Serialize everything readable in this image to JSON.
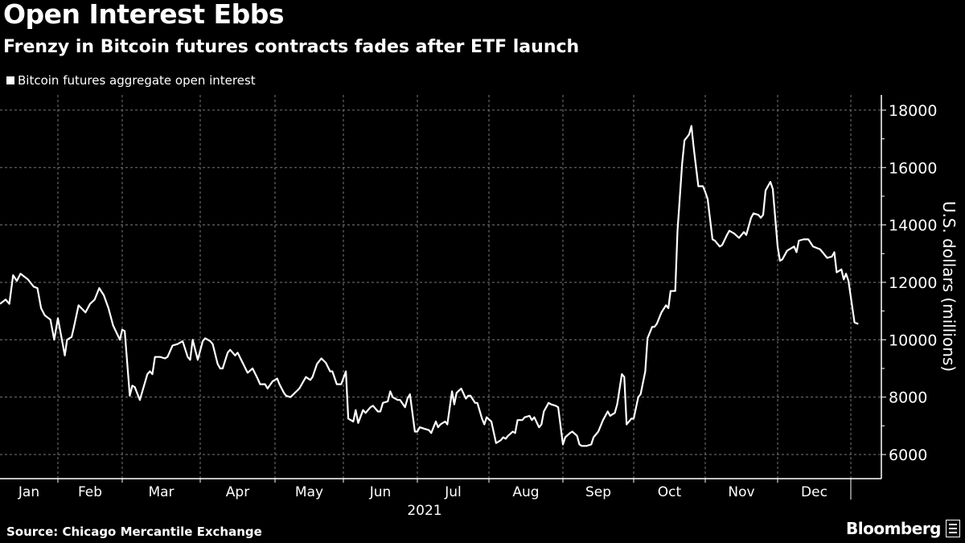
{
  "header": {
    "title": "Open Interest Ebbs",
    "subtitle": "Frenzy in Bitcoin futures contracts fades after ETF launch"
  },
  "footer": {
    "source": "Source: Chicago Mercantile Exchange",
    "brand": "Bloomberg"
  },
  "colors": {
    "background": "#000000",
    "line": "#ffffff",
    "grid": "#777777",
    "text": "#ffffff"
  },
  "chart_data": {
    "type": "line",
    "title": "Open Interest Ebbs",
    "subtitle": "Frenzy in Bitcoin futures contracts fades after ETF launch",
    "xlabel": "2021",
    "ylabel": "U.S. dollars (millions)",
    "ylim": [
      5160,
      18530
    ],
    "y_ticks": [
      6000,
      8000,
      10000,
      12000,
      14000,
      16000,
      18000
    ],
    "x_tick_labels": [
      "Jan",
      "Feb",
      "Mar",
      "Apr",
      "May",
      "Jun",
      "Jul",
      "Aug",
      "Sep",
      "Oct",
      "Nov",
      "Dec"
    ],
    "y_axis_position": "right",
    "grid": true,
    "legend_placement": "top-left",
    "series": [
      {
        "name": "Bitcoin futures aggregate open interest",
        "x": [
          "2021-01-01",
          "2021-01-04",
          "2021-01-06",
          "2021-01-08",
          "2021-01-10",
          "2021-01-12",
          "2021-01-16",
          "2021-01-19",
          "2021-01-21",
          "2021-01-23",
          "2021-01-25",
          "2021-01-28",
          "2021-01-30",
          "2021-02-01",
          "2021-02-04",
          "2021-02-05",
          "2021-02-07",
          "2021-02-08",
          "2021-02-10",
          "2021-02-13",
          "2021-02-15",
          "2021-02-17",
          "2021-02-19",
          "2021-02-21",
          "2021-02-23",
          "2021-02-25",
          "2021-02-28",
          "2021-03-01",
          "2021-03-02",
          "2021-03-04",
          "2021-03-05",
          "2021-03-06",
          "2021-03-08",
          "2021-03-11",
          "2021-03-12",
          "2021-03-13",
          "2021-03-14",
          "2021-03-16",
          "2021-03-18",
          "2021-03-19",
          "2021-03-21",
          "2021-03-23",
          "2021-03-25",
          "2021-03-27",
          "2021-03-28",
          "2021-03-29",
          "2021-03-31",
          "2021-04-02",
          "2021-04-03",
          "2021-04-05",
          "2021-04-06",
          "2021-04-08",
          "2021-04-09",
          "2021-04-10",
          "2021-04-12",
          "2021-04-13",
          "2021-04-15",
          "2021-04-16",
          "2021-04-18",
          "2021-04-20",
          "2021-04-22",
          "2021-04-24",
          "2021-04-25",
          "2021-04-27",
          "2021-04-28",
          "2021-04-30",
          "2021-05-02",
          "2021-05-03",
          "2021-05-05",
          "2021-05-06",
          "2021-05-08",
          "2021-05-12",
          "2021-05-15",
          "2021-05-17",
          "2021-05-18",
          "2021-05-20",
          "2021-05-22",
          "2021-05-24",
          "2021-05-26",
          "2021-05-27",
          "2021-05-29",
          "2021-05-31",
          "2021-06-02",
          "2021-06-03",
          "2021-06-05",
          "2021-06-06",
          "2021-06-07",
          "2021-06-09",
          "2021-06-10",
          "2021-06-12",
          "2021-06-13",
          "2021-06-15",
          "2021-06-16",
          "2021-06-17",
          "2021-06-19",
          "2021-06-20",
          "2021-06-21",
          "2021-06-23",
          "2021-06-24",
          "2021-06-26",
          "2021-06-27",
          "2021-06-28",
          "2021-06-30",
          "2021-07-01",
          "2021-07-02",
          "2021-07-04",
          "2021-07-06",
          "2021-07-07",
          "2021-07-09",
          "2021-07-10",
          "2021-07-11",
          "2021-07-13",
          "2021-07-14",
          "2021-07-16",
          "2021-07-17",
          "2021-07-18",
          "2021-07-20",
          "2021-07-22",
          "2021-07-23",
          "2021-07-24",
          "2021-07-26",
          "2021-07-27",
          "2021-07-29",
          "2021-07-30",
          "2021-07-31",
          "2021-08-02",
          "2021-08-04",
          "2021-08-06",
          "2021-08-07",
          "2021-08-08",
          "2021-08-09",
          "2021-08-11",
          "2021-08-12",
          "2021-08-13",
          "2021-08-15",
          "2021-08-16",
          "2021-08-18",
          "2021-08-19",
          "2021-08-20",
          "2021-08-22",
          "2021-08-23",
          "2021-08-24",
          "2021-08-26",
          "2021-08-27",
          "2021-08-29",
          "2021-08-30",
          "2021-09-01",
          "2021-09-02",
          "2021-09-04",
          "2021-09-05",
          "2021-09-07",
          "2021-09-08",
          "2021-09-09",
          "2021-09-11",
          "2021-09-13",
          "2021-09-14",
          "2021-09-16",
          "2021-09-18",
          "2021-09-20",
          "2021-09-21",
          "2021-09-23",
          "2021-09-24",
          "2021-09-26",
          "2021-09-27",
          "2021-09-28",
          "2021-09-30",
          "2021-10-01",
          "2021-10-03",
          "2021-10-04",
          "2021-10-06",
          "2021-10-07",
          "2021-10-09",
          "2021-10-10",
          "2021-10-11",
          "2021-10-13",
          "2021-10-15",
          "2021-10-16",
          "2021-10-17",
          "2021-10-19",
          "2021-10-20",
          "2021-10-22",
          "2021-10-23",
          "2021-10-25",
          "2021-10-26",
          "2021-10-27",
          "2021-10-29",
          "2021-10-31",
          "2021-11-01",
          "2021-11-02",
          "2021-11-04",
          "2021-11-05",
          "2021-11-07",
          "2021-11-08",
          "2021-11-10",
          "2021-11-11",
          "2021-11-13",
          "2021-11-15",
          "2021-11-17",
          "2021-11-18",
          "2021-11-20",
          "2021-11-21",
          "2021-11-23",
          "2021-11-24",
          "2021-11-25",
          "2021-11-26",
          "2021-11-28",
          "2021-11-29",
          "2021-12-01",
          "2021-12-02",
          "2021-12-03",
          "2021-12-05",
          "2021-12-07",
          "2021-12-08",
          "2021-12-09",
          "2021-12-10",
          "2021-12-12",
          "2021-12-14",
          "2021-12-16",
          "2021-12-19",
          "2021-12-20",
          "2021-12-22",
          "2021-12-24",
          "2021-12-25",
          "2021-12-26",
          "2021-12-28",
          "2021-12-29",
          "2021-12-30",
          "2021-12-31",
          "2022-01-03",
          "2022-01-05"
        ],
        "values": [
          11250,
          11400,
          11250,
          12250,
          12050,
          12300,
          12100,
          11850,
          11800,
          11100,
          10850,
          10700,
          10000,
          10750,
          9450,
          10000,
          10100,
          10450,
          11200,
          10950,
          11250,
          11400,
          11800,
          11550,
          11100,
          10500,
          10000,
          10350,
          10300,
          8050,
          8400,
          8350,
          7900,
          8800,
          8900,
          8800,
          9400,
          9400,
          9350,
          9400,
          9800,
          9850,
          9950,
          9400,
          9300,
          10000,
          9300,
          9950,
          10050,
          9950,
          9850,
          9150,
          9000,
          9000,
          9550,
          9650,
          9450,
          9550,
          9200,
          8850,
          9000,
          8650,
          8450,
          8450,
          8300,
          8550,
          8650,
          8450,
          8150,
          8050,
          8000,
          8300,
          8700,
          8600,
          8700,
          9150,
          9350,
          9200,
          8900,
          8900,
          8450,
          8450,
          8900,
          7250,
          7150,
          7550,
          7100,
          7550,
          7450,
          7650,
          7700,
          7500,
          7500,
          7800,
          7850,
          8200,
          8000,
          7900,
          7900,
          7650,
          7950,
          8100,
          6800,
          6800,
          6950,
          6900,
          6850,
          6750,
          7150,
          6950,
          7050,
          7150,
          7050,
          8200,
          7750,
          8150,
          8300,
          7950,
          8050,
          8050,
          7800,
          7800,
          7250,
          7050,
          7300,
          7150,
          6400,
          6500,
          6600,
          6550,
          6650,
          6800,
          6750,
          7200,
          7200,
          7300,
          7350,
          7200,
          7300,
          6950,
          7050,
          7500,
          7800,
          7750,
          7700,
          7650,
          6350,
          6600,
          6750,
          6800,
          6650,
          6350,
          6300,
          6300,
          6350,
          6600,
          6800,
          7200,
          7500,
          7350,
          7450,
          7750,
          8800,
          8700,
          7050,
          7250,
          7250,
          8000,
          8100,
          8900,
          10050,
          10450,
          10450,
          10550,
          10950,
          11200,
          11100,
          11700,
          11700,
          13800,
          16150,
          16950,
          17150,
          17450,
          16700,
          15350,
          15350,
          15150,
          14900,
          13500,
          13450,
          13250,
          13300,
          13650,
          13800,
          13700,
          13550,
          13750,
          13650,
          14250,
          14400,
          14350,
          14250,
          14350,
          15200,
          15500,
          15250,
          13250,
          12750,
          12800,
          13100,
          13200,
          13250,
          13050,
          13450,
          13500,
          13500,
          13250,
          13150,
          13050,
          12850,
          12900,
          13050,
          12350,
          12450,
          12100,
          12300,
          12050,
          10600,
          10550
        ]
      }
    ]
  }
}
